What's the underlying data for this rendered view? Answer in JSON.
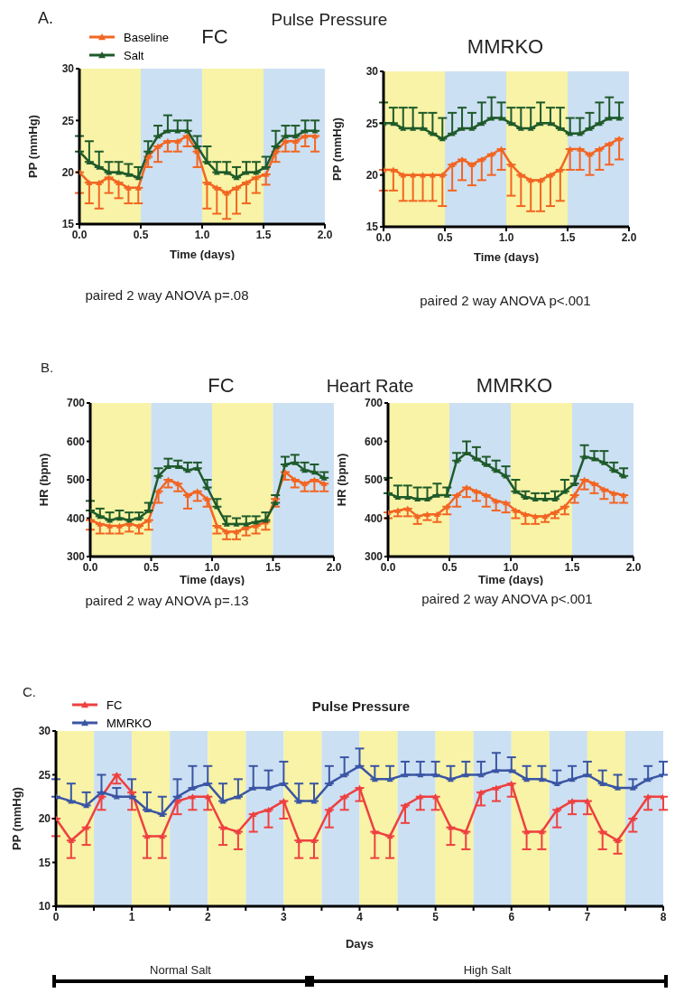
{
  "chart_data": [
    {
      "type": "line",
      "title": "FC",
      "xlabel": "Time (days)",
      "ylabel": "PP (mmHg)",
      "annotations": [
        "A.",
        "Pulse Pressure",
        "paired 2 way ANOVA p=.08"
      ],
      "x": [
        0,
        0.08,
        0.16,
        0.24,
        0.32,
        0.4,
        0.48,
        0.56,
        0.64,
        0.72,
        0.8,
        0.88,
        0.96,
        1.04,
        1.12,
        1.2,
        1.28,
        1.36,
        1.44,
        1.52,
        1.6,
        1.68,
        1.76,
        1.84,
        1.92
      ],
      "series": [
        {
          "name": "Baseline",
          "color": "#f26522",
          "values": [
            20,
            19,
            19,
            19.5,
            19,
            18.5,
            18.5,
            21.5,
            22.5,
            23,
            23,
            23.5,
            22,
            19,
            18.5,
            18,
            18.5,
            19,
            19.5,
            19.8,
            22,
            23,
            23,
            23.5,
            23.5
          ],
          "errors": [
            [
              18,
              20
            ],
            [
              17,
              19
            ],
            [
              16.5,
              19
            ],
            [
              18,
              19.5
            ],
            [
              17.5,
              19
            ],
            [
              17,
              18.5
            ],
            [
              17,
              18.5
            ],
            [
              20.5,
              21.5
            ],
            [
              21,
              22.5
            ],
            [
              22,
              23
            ],
            [
              22,
              23
            ],
            [
              22.5,
              23.5
            ],
            [
              20.5,
              22
            ],
            [
              16.5,
              19
            ],
            [
              16,
              18.5
            ],
            [
              15.5,
              18
            ],
            [
              16,
              18.5
            ],
            [
              17,
              19
            ],
            [
              18,
              19.5
            ],
            [
              18.8,
              19.8
            ],
            [
              21,
              22
            ],
            [
              22,
              23
            ],
            [
              22,
              23
            ],
            [
              22.5,
              23.5
            ],
            [
              22,
              23.5
            ]
          ]
        },
        {
          "name": "Salt",
          "color": "#1e5a2a",
          "values": [
            22,
            21,
            20.5,
            20,
            20,
            19.8,
            19.5,
            22,
            23.5,
            24,
            24,
            24,
            22.5,
            21,
            20,
            20,
            19.5,
            20,
            20,
            20.5,
            22.5,
            23.5,
            23.5,
            24,
            24
          ],
          "errors": [
            [
              22,
              23.5
            ],
            [
              21,
              23
            ],
            [
              20.5,
              22
            ],
            [
              20,
              21
            ],
            [
              20,
              21
            ],
            [
              19.8,
              20.8
            ],
            [
              19.5,
              20.5
            ],
            [
              22,
              23
            ],
            [
              23.5,
              24.5
            ],
            [
              24,
              25.5
            ],
            [
              24,
              25
            ],
            [
              24,
              25
            ],
            [
              22.5,
              23.5
            ],
            [
              21,
              22.5
            ],
            [
              20,
              21
            ],
            [
              20,
              21
            ],
            [
              19.5,
              20.5
            ],
            [
              20,
              21
            ],
            [
              20,
              21
            ],
            [
              20.5,
              21.5
            ],
            [
              22.5,
              24
            ],
            [
              23.5,
              24.5
            ],
            [
              23.5,
              24.5
            ],
            [
              24,
              25
            ],
            [
              24,
              25
            ]
          ]
        }
      ],
      "xlim": [
        0,
        2
      ],
      "xticks": [
        {
          "value": 0,
          "label": "0.0"
        },
        {
          "value": 0.5,
          "label": "0.5"
        },
        {
          "value": 1,
          "label": "1.0"
        },
        {
          "value": 1.5,
          "label": "1.5"
        },
        {
          "value": 2,
          "label": "2.0"
        }
      ],
      "ylim": [
        15,
        30
      ],
      "yticks": [
        15,
        20,
        25,
        30
      ],
      "bands": [
        {
          "axis": "x",
          "from": 0,
          "to": 0.5,
          "color": "#f8f3a6"
        },
        {
          "axis": "x",
          "from": 0.5,
          "to": 1,
          "color": "#cce0f3"
        },
        {
          "axis": "x",
          "from": 1,
          "to": 1.5,
          "color": "#f8f3a6"
        },
        {
          "axis": "x",
          "from": 1.5,
          "to": 2,
          "color": "#cce0f3"
        }
      ],
      "legend": "top left",
      "marker": "triangle",
      "line_style": "solid"
    },
    {
      "type": "line",
      "title": "MMRKO",
      "xlabel": "Time (days)",
      "ylabel": "PP (mmHg)",
      "annotations": [
        "paired 2 way ANOVA p<.001"
      ],
      "x": [
        0,
        0.08,
        0.16,
        0.24,
        0.32,
        0.4,
        0.48,
        0.56,
        0.64,
        0.72,
        0.8,
        0.88,
        0.96,
        1.04,
        1.12,
        1.2,
        1.28,
        1.36,
        1.44,
        1.52,
        1.6,
        1.68,
        1.76,
        1.84,
        1.92
      ],
      "series": [
        {
          "color": "#f26522",
          "values": [
            20.5,
            20.5,
            20,
            20,
            20,
            20,
            20,
            21,
            21.5,
            21,
            21.5,
            22,
            22.5,
            21,
            20,
            19.5,
            19.5,
            20,
            20.5,
            22.5,
            22.5,
            22,
            22.5,
            23,
            23.5
          ],
          "errors": [
            [
              18.5,
              20.5
            ],
            [
              18.5,
              20.5
            ],
            [
              17.5,
              20
            ],
            [
              17.5,
              20
            ],
            [
              17.5,
              20
            ],
            [
              17.5,
              20
            ],
            [
              17,
              20
            ],
            [
              18.5,
              21
            ],
            [
              19.5,
              21.5
            ],
            [
              19,
              21
            ],
            [
              19.5,
              21.5
            ],
            [
              20,
              22
            ],
            [
              20.5,
              22.5
            ],
            [
              18,
              21
            ],
            [
              17,
              20
            ],
            [
              16.5,
              19.5
            ],
            [
              16.5,
              19.5
            ],
            [
              17,
              20
            ],
            [
              17.5,
              20.5
            ],
            [
              20.5,
              22.5
            ],
            [
              20.5,
              22.5
            ],
            [
              20,
              22
            ],
            [
              20.5,
              22.5
            ],
            [
              21,
              23
            ],
            [
              21.5,
              23.5
            ]
          ]
        },
        {
          "color": "#1e5a2a",
          "values": [
            25,
            25,
            24.5,
            24.5,
            24.5,
            24,
            23.5,
            24,
            24.5,
            24.5,
            25,
            25.5,
            25.5,
            25,
            24.5,
            24.5,
            25,
            25,
            24.5,
            24,
            24,
            24.5,
            25,
            25.5,
            25.5
          ],
          "errors": [
            [
              25,
              27
            ],
            [
              25,
              26.5
            ],
            [
              24.5,
              26.5
            ],
            [
              24.5,
              26.5
            ],
            [
              24.5,
              26
            ],
            [
              24,
              26
            ],
            [
              23.5,
              25.5
            ],
            [
              24,
              26
            ],
            [
              24.5,
              26.5
            ],
            [
              24.5,
              26
            ],
            [
              25,
              27
            ],
            [
              25.5,
              27.5
            ],
            [
              25.5,
              27
            ],
            [
              25,
              26.5
            ],
            [
              24.5,
              26.5
            ],
            [
              24.5,
              26.5
            ],
            [
              25,
              27
            ],
            [
              25,
              26.5
            ],
            [
              24.5,
              26.5
            ],
            [
              24,
              25.5
            ],
            [
              24,
              25.5
            ],
            [
              24.5,
              26
            ],
            [
              25,
              27
            ],
            [
              25.5,
              27.5
            ],
            [
              25.5,
              27
            ]
          ]
        }
      ],
      "xlim": [
        0,
        2
      ],
      "xticks": [
        {
          "value": 0,
          "label": "0.0"
        },
        {
          "value": 0.5,
          "label": "0.5"
        },
        {
          "value": 1,
          "label": "1.0"
        },
        {
          "value": 1.5,
          "label": "1.5"
        },
        {
          "value": 2,
          "label": "2.0"
        }
      ],
      "ylim": [
        15,
        30
      ],
      "yticks": [
        15,
        20,
        25,
        30
      ],
      "bands": [
        {
          "axis": "x",
          "from": 0,
          "to": 0.5,
          "color": "#f8f3a6"
        },
        {
          "axis": "x",
          "from": 0.5,
          "to": 1,
          "color": "#cce0f3"
        },
        {
          "axis": "x",
          "from": 1,
          "to": 1.5,
          "color": "#f8f3a6"
        },
        {
          "axis": "x",
          "from": 1.5,
          "to": 2,
          "color": "#cce0f3"
        }
      ],
      "marker": "triangle",
      "line_style": "solid"
    },
    {
      "type": "line",
      "title": "FC",
      "xlabel": "Time (days)",
      "ylabel": "HR (bpm)",
      "annotations": [
        "B.",
        "Heart Rate",
        "paired 2 way ANOVA p=.13"
      ],
      "x": [
        0,
        0.08,
        0.16,
        0.24,
        0.32,
        0.4,
        0.48,
        0.56,
        0.64,
        0.72,
        0.8,
        0.88,
        0.96,
        1.04,
        1.12,
        1.2,
        1.28,
        1.36,
        1.44,
        1.52,
        1.6,
        1.68,
        1.76,
        1.84,
        1.92
      ],
      "series": [
        {
          "color": "#f26522",
          "values": [
            395,
            385,
            380,
            380,
            385,
            380,
            395,
            470,
            500,
            490,
            460,
            470,
            450,
            380,
            365,
            365,
            375,
            380,
            390,
            450,
            520,
            500,
            490,
            500,
            490
          ],
          "errors": [
            [
              370,
              395
            ],
            [
              360,
              385
            ],
            [
              360,
              380
            ],
            [
              360,
              380
            ],
            [
              365,
              385
            ],
            [
              360,
              380
            ],
            [
              370,
              395
            ],
            [
              440,
              470
            ],
            [
              480,
              500
            ],
            [
              470,
              490
            ],
            [
              425,
              460
            ],
            [
              445,
              470
            ],
            [
              430,
              450
            ],
            [
              360,
              380
            ],
            [
              345,
              365
            ],
            [
              345,
              365
            ],
            [
              355,
              375
            ],
            [
              360,
              380
            ],
            [
              370,
              390
            ],
            [
              430,
              450
            ],
            [
              500,
              520
            ],
            [
              480,
              500
            ],
            [
              470,
              490
            ],
            [
              470,
              500
            ],
            [
              470,
              490
            ]
          ]
        },
        {
          "color": "#1e5a2a",
          "values": [
            420,
            405,
            395,
            400,
            395,
            400,
            420,
            510,
            535,
            535,
            525,
            530,
            480,
            430,
            385,
            385,
            385,
            390,
            395,
            440,
            540,
            545,
            525,
            520,
            505
          ],
          "errors": [
            [
              420,
              445
            ],
            [
              405,
              425
            ],
            [
              395,
              415
            ],
            [
              400,
              420
            ],
            [
              395,
              415
            ],
            [
              400,
              415
            ],
            [
              420,
              440
            ],
            [
              510,
              530
            ],
            [
              535,
              555
            ],
            [
              535,
              550
            ],
            [
              525,
              545
            ],
            [
              530,
              545
            ],
            [
              480,
              500
            ],
            [
              430,
              450
            ],
            [
              385,
              405
            ],
            [
              385,
              400
            ],
            [
              385,
              405
            ],
            [
              390,
              405
            ],
            [
              395,
              415
            ],
            [
              440,
              460
            ],
            [
              540,
              560
            ],
            [
              545,
              565
            ],
            [
              525,
              545
            ],
            [
              520,
              540
            ],
            [
              505,
              520
            ]
          ]
        }
      ],
      "xlim": [
        0,
        2
      ],
      "xticks": [
        {
          "value": 0,
          "label": "0.0"
        },
        {
          "value": 0.5,
          "label": "0.5"
        },
        {
          "value": 1,
          "label": "1.0"
        },
        {
          "value": 1.5,
          "label": "1.5"
        },
        {
          "value": 2,
          "label": "2.0"
        }
      ],
      "ylim": [
        300,
        700
      ],
      "yticks": [
        300,
        400,
        500,
        600,
        700
      ],
      "bands": [
        {
          "axis": "x",
          "from": 0,
          "to": 0.5,
          "color": "#f8f3a6"
        },
        {
          "axis": "x",
          "from": 0.5,
          "to": 1,
          "color": "#cce0f3"
        },
        {
          "axis": "x",
          "from": 1,
          "to": 1.5,
          "color": "#f8f3a6"
        },
        {
          "axis": "x",
          "from": 1.5,
          "to": 2,
          "color": "#cce0f3"
        }
      ],
      "marker": "triangle",
      "line_style": "solid"
    },
    {
      "type": "line",
      "title": "MMRKO",
      "xlabel": "Time (days)",
      "ylabel": "HR (bpm)",
      "annotations": [
        "paired 2 way ANOVA p<.001"
      ],
      "x": [
        0,
        0.08,
        0.16,
        0.24,
        0.32,
        0.4,
        0.48,
        0.56,
        0.64,
        0.72,
        0.8,
        0.88,
        0.96,
        1.04,
        1.12,
        1.2,
        1.28,
        1.36,
        1.44,
        1.52,
        1.6,
        1.68,
        1.76,
        1.84,
        1.92
      ],
      "series": [
        {
          "color": "#f26522",
          "values": [
            415,
            420,
            425,
            405,
            410,
            410,
            430,
            460,
            480,
            470,
            460,
            445,
            440,
            420,
            410,
            405,
            405,
            415,
            430,
            460,
            500,
            490,
            475,
            465,
            460
          ],
          "errors": [
            [
              400,
              415
            ],
            [
              405,
              420
            ],
            [
              405,
              425
            ],
            [
              385,
              405
            ],
            [
              395,
              410
            ],
            [
              390,
              410
            ],
            [
              410,
              430
            ],
            [
              430,
              460
            ],
            [
              455,
              480
            ],
            [
              445,
              470
            ],
            [
              430,
              460
            ],
            [
              420,
              445
            ],
            [
              415,
              440
            ],
            [
              400,
              420
            ],
            [
              385,
              410
            ],
            [
              385,
              405
            ],
            [
              390,
              405
            ],
            [
              400,
              415
            ],
            [
              410,
              430
            ],
            [
              440,
              460
            ],
            [
              475,
              500
            ],
            [
              465,
              490
            ],
            [
              450,
              475
            ],
            [
              440,
              465
            ],
            [
              440,
              460
            ]
          ]
        },
        {
          "color": "#1e5a2a",
          "values": [
            465,
            455,
            455,
            450,
            450,
            460,
            460,
            550,
            570,
            555,
            540,
            525,
            510,
            470,
            455,
            450,
            450,
            450,
            470,
            490,
            560,
            555,
            545,
            525,
            510
          ],
          "errors": [
            [
              465,
              505
            ],
            [
              455,
              485
            ],
            [
              455,
              485
            ],
            [
              450,
              480
            ],
            [
              450,
              480
            ],
            [
              460,
              490
            ],
            [
              460,
              480
            ],
            [
              550,
              570
            ],
            [
              570,
              600
            ],
            [
              555,
              585
            ],
            [
              540,
              560
            ],
            [
              525,
              550
            ],
            [
              510,
              535
            ],
            [
              470,
              500
            ],
            [
              455,
              470
            ],
            [
              450,
              465
            ],
            [
              450,
              465
            ],
            [
              450,
              470
            ],
            [
              470,
              500
            ],
            [
              490,
              510
            ],
            [
              560,
              590
            ],
            [
              555,
              575
            ],
            [
              545,
              575
            ],
            [
              525,
              545
            ],
            [
              510,
              530
            ]
          ]
        }
      ],
      "xlim": [
        0,
        2
      ],
      "xticks": [
        {
          "value": 0,
          "label": "0.0"
        },
        {
          "value": 0.5,
          "label": "0.5"
        },
        {
          "value": 1,
          "label": "1.0"
        },
        {
          "value": 1.5,
          "label": "1.5"
        },
        {
          "value": 2,
          "label": "2.0"
        }
      ],
      "ylim": [
        300,
        700
      ],
      "yticks": [
        300,
        400,
        500,
        600,
        700
      ],
      "bands": [
        {
          "axis": "x",
          "from": 0,
          "to": 0.5,
          "color": "#f8f3a6"
        },
        {
          "axis": "x",
          "from": 0.5,
          "to": 1,
          "color": "#cce0f3"
        },
        {
          "axis": "x",
          "from": 1,
          "to": 1.5,
          "color": "#f8f3a6"
        },
        {
          "axis": "x",
          "from": 1.5,
          "to": 2,
          "color": "#cce0f3"
        }
      ],
      "marker": "triangle",
      "line_style": "solid"
    },
    {
      "type": "line",
      "title": "Pulse Pressure",
      "xlabel": "Days",
      "ylabel": "PP (mmHg)",
      "annotations": [
        "C.",
        "Normal Salt",
        "High Salt"
      ],
      "x": [
        0,
        0.2,
        0.4,
        0.6,
        0.8,
        1,
        1.2,
        1.4,
        1.6,
        1.8,
        2,
        2.2,
        2.4,
        2.6,
        2.8,
        3,
        3.2,
        3.4,
        3.6,
        3.8,
        4,
        4.2,
        4.4,
        4.6,
        4.8,
        5,
        5.2,
        5.4,
        5.6,
        5.8,
        6,
        6.2,
        6.4,
        6.6,
        6.8,
        7,
        7.2,
        7.4,
        7.6,
        7.8,
        8
      ],
      "series": [
        {
          "name": "FC",
          "color": "#ee4040",
          "values": [
            20,
            17.5,
            19,
            22.5,
            25,
            23,
            18,
            18,
            22,
            22.5,
            22.5,
            19,
            18.5,
            20.5,
            21,
            22,
            17.5,
            17.5,
            21,
            22.5,
            23.5,
            18.5,
            18,
            21.5,
            22.5,
            22.5,
            19,
            18.5,
            23,
            23.5,
            24,
            18.5,
            18.5,
            21,
            22,
            22,
            18.5,
            17.5,
            20,
            22.5,
            22.5
          ],
          "errors": [
            [
              18,
              20
            ],
            [
              15.5,
              17.5
            ],
            [
              17,
              19
            ],
            [
              21,
              22.5
            ],
            [
              24,
              25
            ],
            [
              21,
              23
            ],
            [
              15.5,
              18
            ],
            [
              15.5,
              18
            ],
            [
              20.5,
              22
            ],
            [
              21,
              22.5
            ],
            [
              21,
              22.5
            ],
            [
              17,
              19
            ],
            [
              16.5,
              18.5
            ],
            [
              18.5,
              20.5
            ],
            [
              19,
              21
            ],
            [
              20,
              22
            ],
            [
              15.5,
              17.5
            ],
            [
              15.5,
              17.5
            ],
            [
              19,
              21
            ],
            [
              21,
              22.5
            ],
            [
              22,
              23.5
            ],
            [
              15.5,
              18.5
            ],
            [
              15.5,
              18
            ],
            [
              19.5,
              21.5
            ],
            [
              21,
              22.5
            ],
            [
              21,
              22.5
            ],
            [
              17,
              19
            ],
            [
              16.5,
              18.5
            ],
            [
              21.5,
              23
            ],
            [
              22,
              23.5
            ],
            [
              22.5,
              24
            ],
            [
              16.5,
              18.5
            ],
            [
              16.5,
              18.5
            ],
            [
              19,
              21
            ],
            [
              20.5,
              22
            ],
            [
              20.5,
              22
            ],
            [
              16.5,
              18.5
            ],
            [
              16,
              17.5
            ],
            [
              18.5,
              20
            ],
            [
              21,
              22.5
            ],
            [
              21,
              22.5
            ]
          ]
        },
        {
          "name": "MMRKO",
          "color": "#3a55a4",
          "values": [
            22.5,
            22,
            21.5,
            23,
            22.5,
            22.5,
            21,
            20.5,
            22.5,
            23.5,
            24,
            22,
            22.5,
            23.5,
            23.5,
            24,
            22,
            22,
            24,
            25,
            26,
            24.5,
            24.5,
            25,
            25,
            25,
            24.5,
            25,
            25,
            25.5,
            25.5,
            24.5,
            24.5,
            24,
            24.5,
            25,
            24,
            23.5,
            23.5,
            24.5,
            25
          ],
          "errors": [
            [
              22.5,
              24.5
            ],
            [
              22,
              24
            ],
            [
              21.5,
              23
            ],
            [
              23,
              25
            ],
            [
              22.5,
              23.5
            ],
            [
              22.5,
              24.5
            ],
            [
              21,
              23
            ],
            [
              20.5,
              22.5
            ],
            [
              22.5,
              24.5
            ],
            [
              23.5,
              26
            ],
            [
              24,
              26
            ],
            [
              22,
              24
            ],
            [
              22.5,
              24.5
            ],
            [
              23.5,
              26
            ],
            [
              23.5,
              25.5
            ],
            [
              24,
              26.5
            ],
            [
              22,
              24
            ],
            [
              22,
              24
            ],
            [
              24,
              26
            ],
            [
              25,
              27
            ],
            [
              26,
              28
            ],
            [
              24.5,
              26
            ],
            [
              24.5,
              26
            ],
            [
              25,
              26.5
            ],
            [
              25,
              26.5
            ],
            [
              25,
              26.5
            ],
            [
              24.5,
              26
            ],
            [
              25,
              26.5
            ],
            [
              25,
              26.5
            ],
            [
              25.5,
              27.5
            ],
            [
              25.5,
              27
            ],
            [
              24.5,
              26
            ],
            [
              24.5,
              26
            ],
            [
              24,
              25.5
            ],
            [
              24.5,
              26
            ],
            [
              25,
              26.5
            ],
            [
              24,
              25.5
            ],
            [
              23.5,
              25
            ],
            [
              23.5,
              24.5
            ],
            [
              24.5,
              26
            ],
            [
              25,
              26.5
            ]
          ]
        }
      ],
      "xlim": [
        0,
        8
      ],
      "xticks": [
        0,
        {
          "value": 0.5,
          "label": null
        },
        1,
        {
          "value": 1.5,
          "label": null
        },
        2,
        {
          "value": 2.5,
          "label": null
        },
        3,
        {
          "value": 3.5,
          "label": null
        },
        4,
        {
          "value": 4.5,
          "label": null
        },
        5,
        {
          "value": 5.5,
          "label": null
        },
        6,
        {
          "value": 6.5,
          "label": null
        },
        7,
        {
          "value": 7.5,
          "label": null
        },
        8
      ],
      "ylim": [
        10,
        30
      ],
      "yticks": [
        10,
        15,
        20,
        25,
        30
      ],
      "bands": [
        {
          "axis": "x",
          "from": 0,
          "to": 0.5,
          "color": "#f8f3a6"
        },
        {
          "axis": "x",
          "from": 0.5,
          "to": 1,
          "color": "#cce0f3"
        },
        {
          "axis": "x",
          "from": 1,
          "to": 1.5,
          "color": "#f8f3a6"
        },
        {
          "axis": "x",
          "from": 1.5,
          "to": 2,
          "color": "#cce0f3"
        },
        {
          "axis": "x",
          "from": 2,
          "to": 2.5,
          "color": "#f8f3a6"
        },
        {
          "axis": "x",
          "from": 2.5,
          "to": 3,
          "color": "#cce0f3"
        },
        {
          "axis": "x",
          "from": 3,
          "to": 3.5,
          "color": "#f8f3a6"
        },
        {
          "axis": "x",
          "from": 3.5,
          "to": 4,
          "color": "#cce0f3"
        },
        {
          "axis": "x",
          "from": 4,
          "to": 4.5,
          "color": "#f8f3a6"
        },
        {
          "axis": "x",
          "from": 4.5,
          "to": 5,
          "color": "#cce0f3"
        },
        {
          "axis": "x",
          "from": 5,
          "to": 5.5,
          "color": "#f8f3a6"
        },
        {
          "axis": "x",
          "from": 5.5,
          "to": 6,
          "color": "#cce0f3"
        },
        {
          "axis": "x",
          "from": 6,
          "to": 6.5,
          "color": "#f8f3a6"
        },
        {
          "axis": "x",
          "from": 6.5,
          "to": 7,
          "color": "#cce0f3"
        },
        {
          "axis": "x",
          "from": 7,
          "to": 7.5,
          "color": "#f8f3a6"
        },
        {
          "axis": "x",
          "from": 7.5,
          "to": 8,
          "color": "#cce0f3"
        }
      ],
      "legend": "top left",
      "marker": "triangle",
      "line_style": "solid"
    }
  ]
}
